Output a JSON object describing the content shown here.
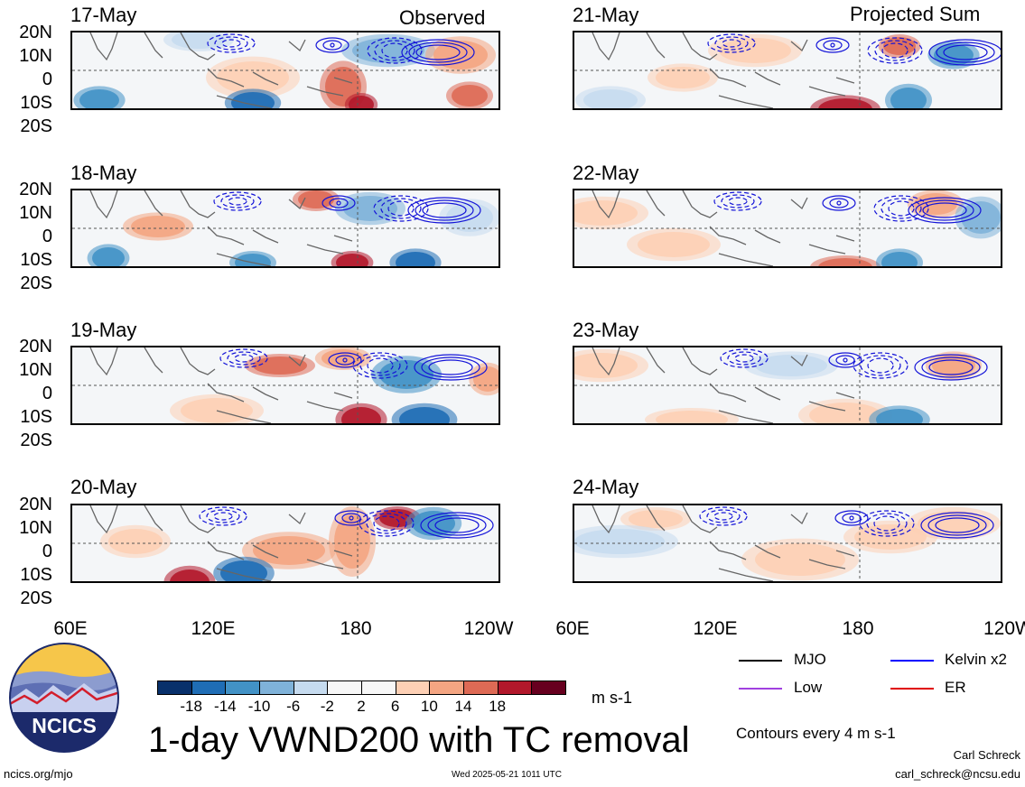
{
  "headers": {
    "left": "Observed",
    "right": "Projected Sum"
  },
  "lat_labels": [
    "20N",
    "10N",
    "0",
    "10S",
    "20S"
  ],
  "lon_labels": [
    "60E",
    "120E",
    "180",
    "120W"
  ],
  "panels": [
    {
      "date": "17-May",
      "column": "observed"
    },
    {
      "date": "18-May",
      "column": "observed"
    },
    {
      "date": "19-May",
      "column": "observed"
    },
    {
      "date": "20-May",
      "column": "observed"
    },
    {
      "date": "21-May",
      "column": "projected"
    },
    {
      "date": "22-May",
      "column": "projected"
    },
    {
      "date": "23-May",
      "column": "projected"
    },
    {
      "date": "24-May",
      "column": "projected"
    }
  ],
  "colorbar": {
    "colors": [
      "#08306b",
      "#1f6db5",
      "#4292c6",
      "#7fb2d9",
      "#c6dbef",
      "#f7f7f7",
      "#f7f7f7",
      "#fdd0b5",
      "#f4a582",
      "#de6a55",
      "#b2182b",
      "#67001f"
    ],
    "ticks": [
      "-18",
      "-14",
      "-10",
      "-6",
      "-2",
      "2",
      "6",
      "10",
      "14",
      "18"
    ],
    "units": "m s-1"
  },
  "title": "1-day VWND200 with TC removal",
  "legend": [
    {
      "label": "MJO",
      "color": "#000000"
    },
    {
      "label": "Kelvin x2",
      "color": "#0000ff"
    },
    {
      "label": "Low",
      "color": "#a040e0"
    },
    {
      "label": "ER",
      "color": "#e00000"
    }
  ],
  "contour_note": "Contours every 4 m s-1",
  "logo_text": "NCICS",
  "footer": {
    "left": "ncics.org/mjo",
    "center": "Wed 2025-05-21 1011 UTC",
    "author": "Carl Schreck",
    "email": "carl_schreck@ncsu.edu"
  }
}
